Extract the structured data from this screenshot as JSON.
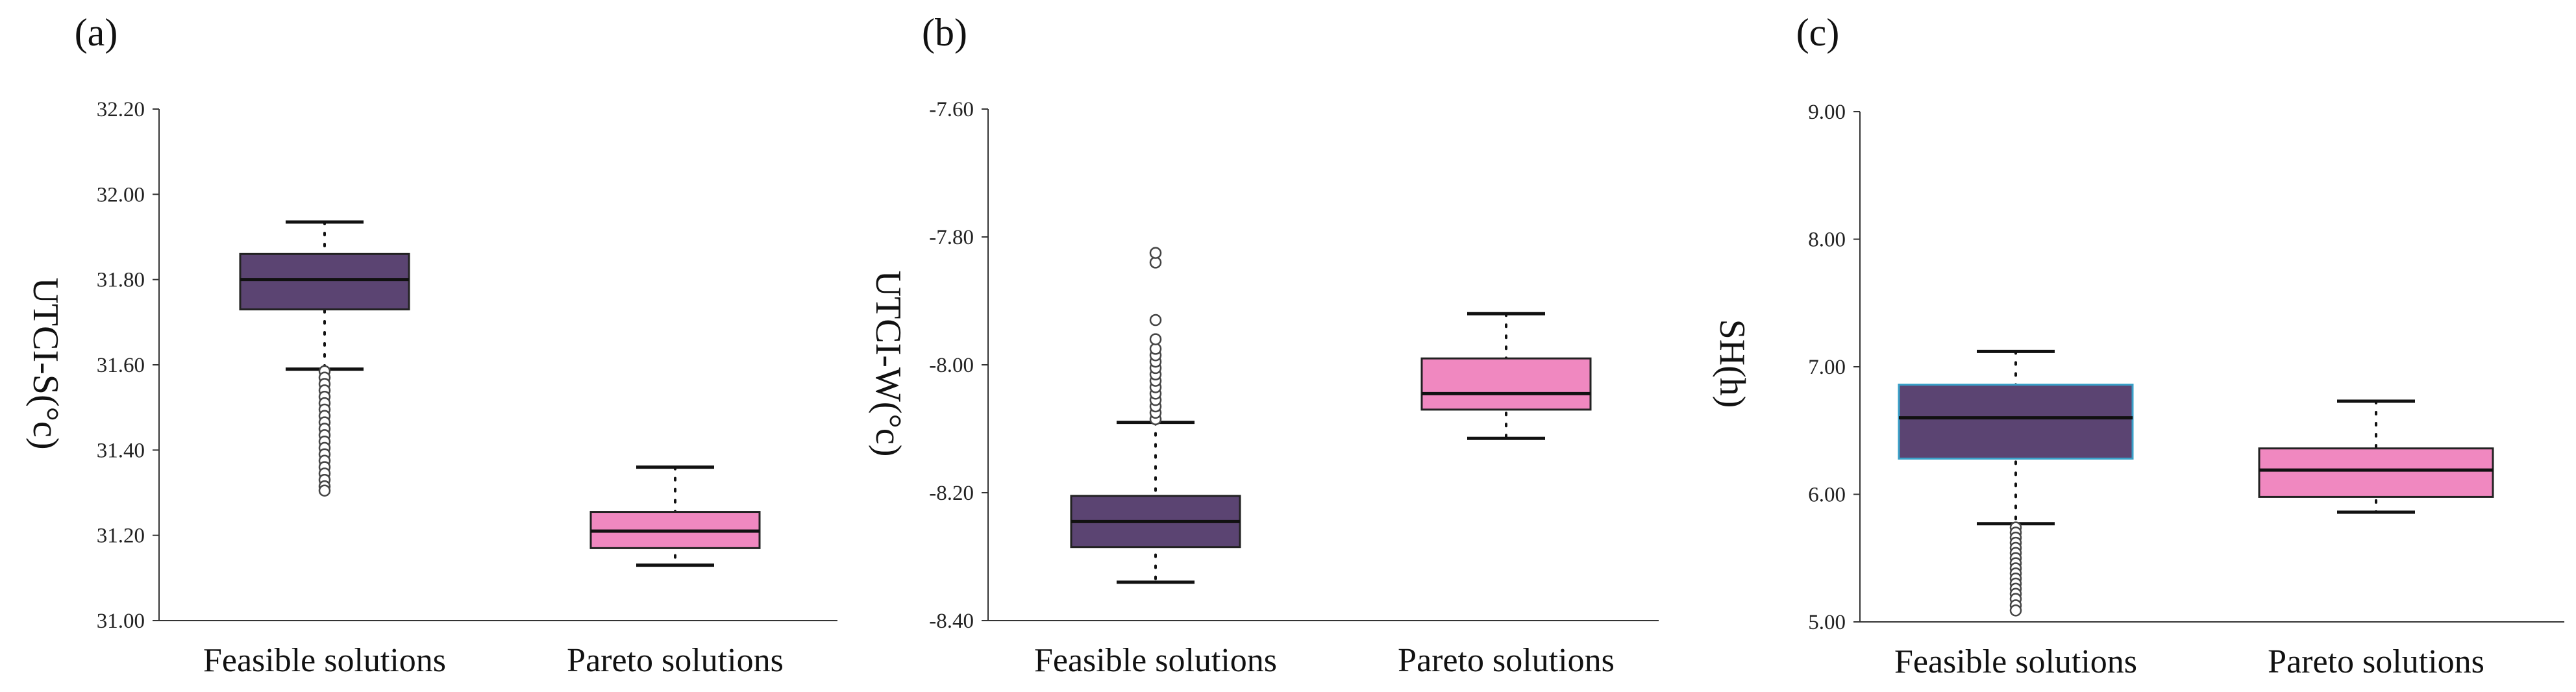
{
  "colors": {
    "feasible_box": "#5b4472",
    "pareto_box": "#f088c0",
    "median_line": "#111111",
    "axis": "#333333",
    "outlier_stroke": "#444444"
  },
  "chart_data": [
    {
      "type": "box",
      "panel_label": "(a)",
      "ylabel": "UTCI-S(°c)",
      "categories": [
        "Feasible solutions",
        "Pareto solutions"
      ],
      "ylim": [
        31.0,
        32.2
      ],
      "yticks": [
        31.0,
        31.2,
        31.4,
        31.6,
        31.8,
        32.0,
        32.2
      ],
      "ytick_labels": [
        "31.00",
        "31.20",
        "31.40",
        "31.60",
        "31.80",
        "32.00",
        "32.20"
      ],
      "boxes": [
        {
          "name": "Feasible solutions",
          "whisker_low": 31.59,
          "q1": 31.73,
          "median": 31.8,
          "q3": 31.86,
          "whisker_high": 31.935,
          "outliers": [
            31.585,
            31.57,
            31.555,
            31.54,
            31.525,
            31.51,
            31.495,
            31.48,
            31.465,
            31.45,
            31.435,
            31.42,
            31.405,
            31.39,
            31.375,
            31.36,
            31.345,
            31.33,
            31.315,
            31.305
          ]
        },
        {
          "name": "Pareto solutions",
          "whisker_low": 31.13,
          "q1": 31.17,
          "median": 31.21,
          "q3": 31.255,
          "whisker_high": 31.36,
          "outliers": []
        }
      ]
    },
    {
      "type": "box",
      "panel_label": "(b)",
      "ylabel": "UTCI-W(°c)",
      "categories": [
        "Feasible solutions",
        "Pareto solutions"
      ],
      "ylim": [
        -8.4,
        -7.6
      ],
      "yticks": [
        -8.4,
        -8.2,
        -8.0,
        -7.8,
        -7.6
      ],
      "ytick_labels": [
        "-8.40",
        "-8.20",
        "-8.00",
        "-7.80",
        "-7.60"
      ],
      "boxes": [
        {
          "name": "Feasible solutions",
          "whisker_low": -8.34,
          "q1": -8.285,
          "median": -8.245,
          "q3": -8.205,
          "whisker_high": -8.09,
          "outliers": [
            -8.085,
            -8.075,
            -8.065,
            -8.055,
            -8.045,
            -8.035,
            -8.025,
            -8.015,
            -8.005,
            -7.995,
            -7.985,
            -7.975,
            -7.96,
            -7.93,
            -7.84,
            -7.825
          ]
        },
        {
          "name": "Pareto solutions",
          "whisker_low": -8.115,
          "q1": -8.07,
          "median": -8.045,
          "q3": -7.99,
          "whisker_high": -7.92,
          "outliers": []
        }
      ]
    },
    {
      "type": "box",
      "panel_label": "(c)",
      "ylabel": "SH(h)",
      "categories": [
        "Feasible solutions",
        "Pareto solutions"
      ],
      "ylim": [
        5.0,
        9.0
      ],
      "yticks": [
        5.0,
        6.0,
        7.0,
        8.0,
        9.0
      ],
      "ytick_labels": [
        "5.00",
        "6.00",
        "7.00",
        "8.00",
        "9.00"
      ],
      "boxes": [
        {
          "name": "Feasible solutions",
          "whisker_low": 5.77,
          "q1": 6.28,
          "median": 6.6,
          "q3": 6.86,
          "whisker_high": 7.12,
          "outliers": [
            5.74,
            5.7,
            5.66,
            5.62,
            5.58,
            5.54,
            5.5,
            5.46,
            5.42,
            5.38,
            5.34,
            5.3,
            5.26,
            5.22,
            5.18,
            5.13,
            5.09
          ]
        },
        {
          "name": "Pareto solutions",
          "whisker_low": 5.86,
          "q1": 5.98,
          "median": 6.19,
          "q3": 6.36,
          "whisker_high": 6.73,
          "outliers": []
        }
      ]
    }
  ]
}
